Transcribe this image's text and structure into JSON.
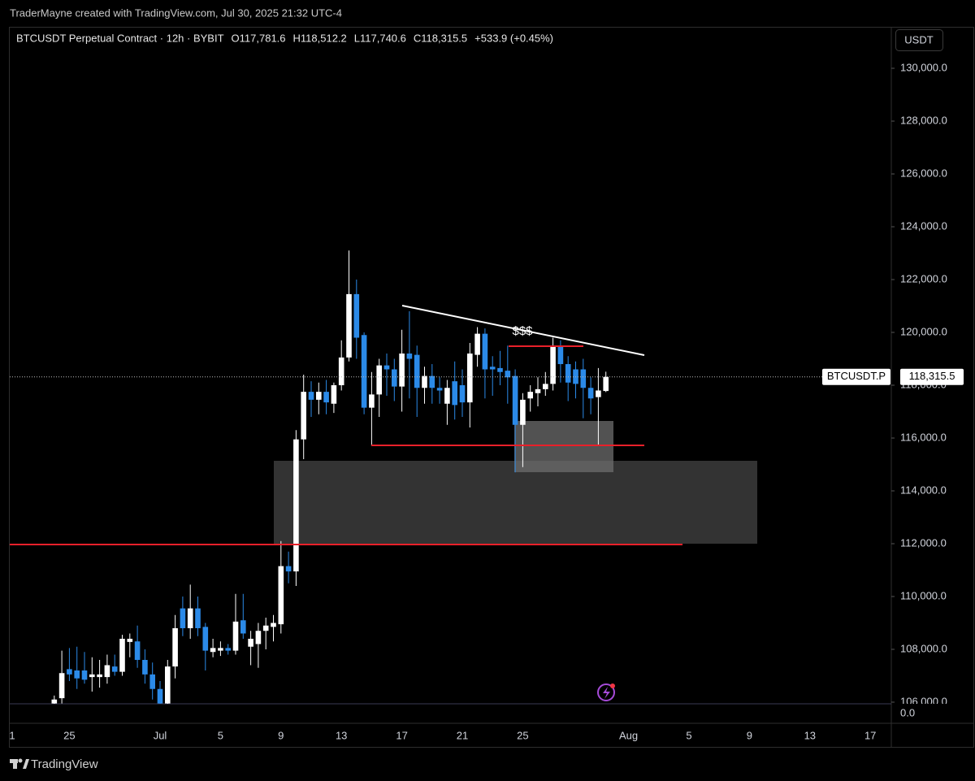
{
  "header": "TraderMayne created with TradingView.com, Jul 30, 2025 21:32 UTC-4",
  "chart_data": {
    "type": "candlestick",
    "title": "BTCUSDT Perpetual Contract · 12h · BYBIT",
    "ohlc_labels": [
      "O117,781.6",
      "H118,512.2",
      "L117,740.6",
      "C118,315.5"
    ],
    "change_label": "+533.9 (+0.45%)",
    "currency": "USDT",
    "last_price_symbol": "BTCUSDT.P",
    "last_price_label": "118,315.5",
    "annotation": "$$$",
    "categories": [
      "1",
      null,
      null,
      null,
      null,
      null,
      null,
      null,
      "25",
      null,
      null,
      null,
      null,
      null,
      null,
      null,
      null,
      null,
      null,
      null,
      "Jul",
      null,
      null,
      null,
      null,
      null,
      null,
      null,
      "5",
      null,
      null,
      null,
      null,
      null,
      null,
      null,
      "9",
      null,
      null,
      null,
      null,
      null,
      null,
      null,
      "13",
      null,
      null,
      null,
      null,
      null,
      null,
      null,
      "17",
      null,
      null,
      null,
      null,
      null,
      null,
      null,
      "21",
      null,
      null,
      null,
      null,
      null,
      null,
      null,
      "25",
      null,
      null,
      null,
      null,
      null,
      null,
      null,
      null,
      null,
      null,
      null,
      null,
      null,
      "Aug",
      null,
      null,
      null,
      null,
      null,
      null,
      null,
      "5",
      null,
      null,
      null,
      null,
      null,
      null,
      null,
      "9",
      null,
      null,
      null,
      null,
      null,
      null,
      null,
      "13",
      null,
      null,
      null,
      null,
      null,
      null,
      null,
      "17",
      null,
      null
    ],
    "open": [
      null,
      null,
      null,
      null,
      null,
      null,
      105950,
      106150,
      107250,
      107200,
      107200,
      106950,
      106950,
      106950,
      107350,
      107150,
      108280,
      108300,
      107600,
      107050,
      106500,
      105950,
      107350,
      109550,
      108800,
      109550,
      108850,
      107900,
      107950,
      108050,
      107950,
      109100,
      108100,
      108200,
      108700,
      108850,
      108950,
      111150,
      110950,
      115950,
      117750,
      117450,
      117750,
      117300,
      118000,
      119050,
      121450,
      119900,
      117150,
      117650,
      118750,
      118600,
      117950,
      119200,
      119150,
      117900,
      118350,
      117900,
      117300,
      118150,
      118000,
      117350,
      119150,
      119950,
      118700,
      118650,
      118550,
      118350,
      116500,
      117500,
      117700,
      117850,
      118050,
      119450,
      118800,
      118600,
      118600,
      117900,
      117550,
      117781.6,
      null,
      null,
      null,
      null,
      null,
      null,
      null,
      null,
      null,
      null,
      null,
      null,
      null,
      null,
      null,
      null,
      null,
      null,
      null,
      null,
      null,
      null,
      null,
      null,
      null,
      null,
      null,
      null,
      null,
      null,
      null,
      null,
      null,
      null,
      null,
      null,
      null
    ],
    "high": [
      null,
      null,
      null,
      null,
      null,
      null,
      106250,
      107950,
      108050,
      108100,
      107900,
      107700,
      107600,
      107800,
      107800,
      108550,
      108600,
      108900,
      108000,
      107500,
      106800,
      107600,
      109300,
      110000,
      110450,
      110000,
      109000,
      108400,
      108300,
      108200,
      110100,
      110100,
      108700,
      109000,
      109200,
      109300,
      112100,
      111700,
      116300,
      118400,
      118150,
      118100,
      118200,
      118100,
      119700,
      123100,
      122000,
      120000,
      118500,
      119000,
      119200,
      119000,
      120100,
      120800,
      119500,
      118700,
      118800,
      118300,
      118200,
      118900,
      118600,
      119600,
      120200,
      120150,
      119100,
      119300,
      119500,
      118600,
      117700,
      118000,
      118300,
      118500,
      119800,
      119700,
      119100,
      118900,
      119000,
      118300,
      118650,
      118512.2,
      null,
      null,
      null,
      null,
      null,
      null,
      null,
      null,
      null,
      null,
      null,
      null,
      null,
      null,
      null,
      null,
      null,
      null,
      null,
      null,
      null,
      null,
      null,
      null,
      null,
      null,
      null,
      null,
      null,
      null,
      null,
      null,
      null,
      null,
      null,
      null,
      null
    ],
    "low": [
      null,
      null,
      null,
      null,
      null,
      null,
      105900,
      105950,
      106800,
      106500,
      106700,
      106400,
      106550,
      106700,
      107000,
      107000,
      107700,
      107300,
      106700,
      106100,
      105900,
      105900,
      106900,
      108500,
      108400,
      108500,
      107200,
      107700,
      107750,
      107800,
      107800,
      108400,
      107400,
      107300,
      108000,
      108300,
      108600,
      110500,
      110400,
      115200,
      116800,
      116900,
      116900,
      116950,
      117800,
      118900,
      119000,
      116900,
      115700,
      116800,
      117600,
      117400,
      117000,
      117500,
      116800,
      117300,
      117300,
      117300,
      116500,
      116700,
      116800,
      116400,
      118700,
      117500,
      117600,
      118000,
      117300,
      114700,
      114900,
      117000,
      117200,
      117600,
      117800,
      118100,
      117400,
      117500,
      116750,
      116900,
      115700,
      117740.6,
      null,
      null,
      null,
      null,
      null,
      null,
      null,
      null,
      null,
      null,
      null,
      null,
      null,
      null,
      null,
      null,
      null,
      null,
      null,
      null,
      null,
      null,
      null,
      null,
      null,
      null,
      null,
      null,
      null,
      null,
      null,
      null,
      null,
      null,
      null,
      null,
      null
    ],
    "close": [
      null,
      null,
      null,
      null,
      null,
      null,
      106100,
      107100,
      107050,
      106900,
      106850,
      107050,
      107050,
      107400,
      107150,
      108400,
      108400,
      107600,
      107050,
      106500,
      105950,
      107350,
      108800,
      108800,
      109550,
      108800,
      107950,
      108050,
      108050,
      107950,
      109050,
      108600,
      108400,
      108700,
      108900,
      109000,
      111150,
      110950,
      115950,
      117750,
      117450,
      117750,
      117350,
      118000,
      119050,
      121450,
      119800,
      117150,
      117650,
      118750,
      118600,
      117950,
      119200,
      119000,
      117900,
      118350,
      117900,
      117800,
      117900,
      117250,
      117350,
      119200,
      119950,
      118600,
      118600,
      118500,
      118300,
      116500,
      117450,
      117750,
      117850,
      118050,
      119450,
      118800,
      118100,
      118050,
      117900,
      117500,
      117800,
      118315.5,
      null,
      null,
      null,
      null,
      null,
      null,
      null,
      null,
      null,
      null,
      null,
      null,
      null,
      null,
      null,
      null,
      null,
      null,
      null,
      null,
      null,
      null,
      null,
      null,
      null,
      null,
      null,
      null,
      null,
      null,
      null,
      null,
      null,
      null,
      null,
      null,
      null
    ],
    "up_color": "#ffffff",
    "down_color": "#2b8ae8",
    "ylim": [
      105938,
      131570
    ],
    "yticks": [
      {
        "value": 106000,
        "label": "106,000.0"
      },
      {
        "value": 108000,
        "label": "108,000.0"
      },
      {
        "value": 110000,
        "label": "110,000.0"
      },
      {
        "value": 112000,
        "label": "112,000.0"
      },
      {
        "value": 114000,
        "label": "114,000.0"
      },
      {
        "value": 116000,
        "label": "116,000.0"
      },
      {
        "value": 118000,
        "label": "118,000.0"
      },
      {
        "value": 120000,
        "label": "120,000.0"
      },
      {
        "value": 122000,
        "label": "122,000.0"
      },
      {
        "value": 124000,
        "label": "124,000.0"
      },
      {
        "value": 126000,
        "label": "126,000.0"
      },
      {
        "value": 128000,
        "label": "128,000.0"
      },
      {
        "value": 130000,
        "label": "130,000.0"
      }
    ],
    "pane2_yticks": [
      {
        "value": 0,
        "label": "0.0"
      }
    ],
    "grid": false
  },
  "footer": {
    "brand": "TradingView"
  }
}
